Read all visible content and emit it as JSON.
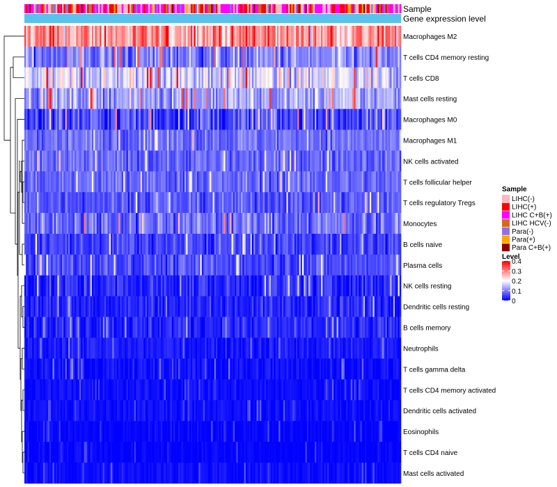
{
  "chart_data": {
    "type": "heatmap",
    "annotation_tracks": [
      "Sample",
      "Gene expression level"
    ],
    "rows": [
      {
        "label": "Macrophages M2",
        "mean": 0.28,
        "spread": 0.1
      },
      {
        "label": "T cells CD4 memory resting",
        "mean": 0.1,
        "spread": 0.08
      },
      {
        "label": "T cells CD8",
        "mean": 0.17,
        "spread": 0.1
      },
      {
        "label": "Mast cells resting",
        "mean": 0.13,
        "spread": 0.07
      },
      {
        "label": "Macrophages M0",
        "mean": 0.06,
        "spread": 0.08
      },
      {
        "label": "Macrophages M1",
        "mean": 0.09,
        "spread": 0.05
      },
      {
        "label": "NK cells activated",
        "mean": 0.08,
        "spread": 0.05
      },
      {
        "label": "T cells follicular helper",
        "mean": 0.08,
        "spread": 0.05
      },
      {
        "label": "T cells regulatory  Tregs",
        "mean": 0.07,
        "spread": 0.05
      },
      {
        "label": "Monocytes",
        "mean": 0.09,
        "spread": 0.07
      },
      {
        "label": "B cells naive",
        "mean": 0.05,
        "spread": 0.05
      },
      {
        "label": "Plasma cells",
        "mean": 0.06,
        "spread": 0.05
      },
      {
        "label": "NK cells resting",
        "mean": 0.03,
        "spread": 0.05
      },
      {
        "label": "Dendritic cells resting",
        "mean": 0.03,
        "spread": 0.04
      },
      {
        "label": "B cells memory",
        "mean": 0.03,
        "spread": 0.04
      },
      {
        "label": "Neutrophils",
        "mean": 0.02,
        "spread": 0.03
      },
      {
        "label": "T cells gamma delta",
        "mean": 0.01,
        "spread": 0.03
      },
      {
        "label": "T cells CD4 memory activated",
        "mean": 0.01,
        "spread": 0.02
      },
      {
        "label": "Dendritic cells activated",
        "mean": 0.01,
        "spread": 0.02
      },
      {
        "label": "Eosinophils",
        "mean": 0.0,
        "spread": 0.02
      },
      {
        "label": "T cells CD4 naive",
        "mean": 0.0,
        "spread": 0.02
      },
      {
        "label": "Mast cells activated",
        "mean": 0.01,
        "spread": 0.02
      }
    ],
    "column_count": 240,
    "legend_sample": {
      "title": "Sample",
      "items": [
        {
          "label": "LIHC(-)",
          "color": "#FFB6C1"
        },
        {
          "label": "LIHC(+)",
          "color": "#FF0000"
        },
        {
          "label": "LIHC C+B(+)",
          "color": "#FF00FF"
        },
        {
          "label": "LIHC HCV(-)",
          "color": "#D2691E"
        },
        {
          "label": "Para(-)",
          "color": "#9370DB"
        },
        {
          "label": "Para(+)",
          "color": "#FFA500"
        },
        {
          "label": "Para C+B(+)",
          "color": "#8B0000"
        }
      ]
    },
    "legend_level": {
      "title": "Level",
      "range": [
        0,
        0.4
      ],
      "ticks": [
        {
          "value": 0.4,
          "label": "0.4"
        },
        {
          "value": 0.3,
          "label": "0.3"
        },
        {
          "value": 0.2,
          "label": "0.2"
        },
        {
          "value": 0.1,
          "label": "0.1"
        },
        {
          "value": 0,
          "label": "0"
        }
      ],
      "colors": {
        "low": "#0000FF",
        "mid": "#FFFFFF",
        "high": "#FF0000"
      }
    },
    "gene_expression_track_color": "#5BC0EB",
    "dendrogram": "row-clustering"
  }
}
